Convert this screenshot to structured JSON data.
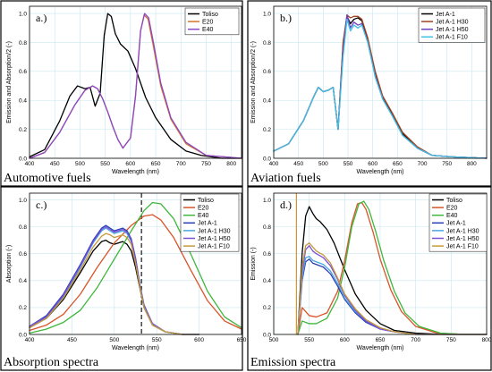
{
  "chart_data": [
    {
      "type": "line",
      "panel_label": "a.)",
      "caption": "Automotive fuels",
      "xlabel": "Wavelength (nm)",
      "ylabel": "Emission and Absorption/2 (-)",
      "xlim": [
        400,
        820
      ],
      "ylim": [
        0,
        1.05
      ],
      "xticks": [
        400,
        450,
        500,
        550,
        600,
        650,
        700,
        750,
        800
      ],
      "yticks": [
        0.0,
        0.2,
        0.4,
        0.6,
        0.8,
        1.0
      ],
      "grid": true,
      "legend_position": "top-right",
      "series": [
        {
          "name": "Toliso",
          "color": "#000000",
          "x": [
            400,
            430,
            460,
            480,
            495,
            510,
            520,
            530,
            540,
            548,
            555,
            562,
            570,
            580,
            595,
            610,
            630,
            650,
            680,
            710,
            740,
            780,
            820
          ],
          "y": [
            0.01,
            0.06,
            0.26,
            0.43,
            0.5,
            0.48,
            0.49,
            0.36,
            0.45,
            0.85,
            1.0,
            0.98,
            0.86,
            0.79,
            0.74,
            0.62,
            0.42,
            0.28,
            0.13,
            0.05,
            0.02,
            0.0,
            0.0
          ]
        },
        {
          "name": "E20",
          "color": "#d4752a",
          "x": [
            400,
            430,
            460,
            490,
            510,
            525,
            535,
            545,
            555,
            565,
            575,
            585,
            600,
            610,
            620,
            627,
            635,
            645,
            660,
            680,
            710,
            750,
            820
          ],
          "y": [
            0.0,
            0.04,
            0.18,
            0.37,
            0.47,
            0.5,
            0.48,
            0.41,
            0.32,
            0.22,
            0.13,
            0.07,
            0.14,
            0.43,
            0.88,
            0.99,
            0.96,
            0.78,
            0.5,
            0.27,
            0.1,
            0.02,
            0.0
          ]
        },
        {
          "name": "E40",
          "color": "#8a46c8",
          "x": [
            400,
            430,
            460,
            490,
            510,
            525,
            535,
            545,
            555,
            565,
            575,
            585,
            600,
            610,
            620,
            628,
            636,
            646,
            660,
            680,
            710,
            750,
            820
          ],
          "y": [
            0.0,
            0.04,
            0.18,
            0.37,
            0.47,
            0.5,
            0.48,
            0.41,
            0.32,
            0.22,
            0.13,
            0.07,
            0.14,
            0.43,
            0.88,
            1.0,
            0.97,
            0.79,
            0.52,
            0.28,
            0.11,
            0.02,
            0.0
          ]
        }
      ]
    },
    {
      "type": "line",
      "panel_label": "b.)",
      "caption": "Aviation fuels",
      "xlabel": "Wavelength (nm)",
      "ylabel": "Emission and Absorption/2 (-)",
      "xlim": [
        400,
        830
      ],
      "ylim": [
        0,
        1.05
      ],
      "xticks": [
        400,
        450,
        500,
        550,
        600,
        650,
        700,
        750,
        800
      ],
      "yticks": [
        0.0,
        0.2,
        0.4,
        0.6,
        0.8,
        1.0
      ],
      "grid": true,
      "legend_position": "top-right",
      "series": [
        {
          "name": "Jet  A-1",
          "color": "#000000",
          "x": [
            400,
            430,
            460,
            480,
            490,
            500,
            510,
            520,
            530,
            540,
            548,
            555,
            562,
            570,
            578,
            590,
            605,
            620,
            640,
            660,
            690,
            720,
            760,
            830
          ],
          "y": [
            0.05,
            0.1,
            0.26,
            0.42,
            0.49,
            0.46,
            0.47,
            0.49,
            0.2,
            0.78,
            0.98,
            0.93,
            0.96,
            0.97,
            0.95,
            0.82,
            0.58,
            0.42,
            0.3,
            0.17,
            0.07,
            0.02,
            0.01,
            0.0
          ]
        },
        {
          "name": "Jet A-1 H30",
          "color": "#a3441e",
          "x": [
            400,
            430,
            460,
            480,
            490,
            500,
            510,
            520,
            530,
            540,
            548,
            555,
            562,
            570,
            578,
            590,
            605,
            620,
            640,
            660,
            690,
            720,
            760,
            830
          ],
          "y": [
            0.05,
            0.1,
            0.26,
            0.42,
            0.49,
            0.46,
            0.47,
            0.49,
            0.2,
            0.8,
            0.99,
            0.97,
            0.98,
            0.98,
            0.96,
            0.83,
            0.6,
            0.43,
            0.31,
            0.18,
            0.08,
            0.02,
            0.01,
            0.0
          ]
        },
        {
          "name": "Jet A-1 H50",
          "color": "#6a3fc0",
          "x": [
            400,
            430,
            460,
            480,
            490,
            500,
            510,
            520,
            530,
            540,
            548,
            555,
            562,
            570,
            578,
            590,
            605,
            620,
            640,
            660,
            690,
            720,
            760,
            830
          ],
          "y": [
            0.05,
            0.1,
            0.26,
            0.42,
            0.49,
            0.46,
            0.47,
            0.49,
            0.2,
            0.74,
            0.99,
            0.9,
            0.94,
            0.92,
            0.93,
            0.8,
            0.57,
            0.41,
            0.29,
            0.16,
            0.07,
            0.02,
            0.01,
            0.0
          ]
        },
        {
          "name": "Jet A-1 F10",
          "color": "#3fc1e4",
          "x": [
            400,
            430,
            460,
            480,
            490,
            500,
            510,
            520,
            530,
            540,
            548,
            555,
            562,
            570,
            578,
            590,
            605,
            620,
            640,
            660,
            690,
            720,
            760,
            830
          ],
          "y": [
            0.05,
            0.1,
            0.26,
            0.42,
            0.49,
            0.46,
            0.47,
            0.49,
            0.2,
            0.7,
            0.96,
            0.88,
            0.92,
            0.9,
            0.92,
            0.8,
            0.56,
            0.41,
            0.29,
            0.16,
            0.07,
            0.02,
            0.01,
            0.0
          ]
        }
      ]
    },
    {
      "type": "line",
      "panel_label": "c.)",
      "caption": "Absorption spectra",
      "xlabel": "Wavelength (nm)",
      "ylabel": "Absorption (-)",
      "xlim": [
        400,
        650
      ],
      "ylim": [
        0,
        1.05
      ],
      "xticks": [
        400,
        450,
        500,
        550,
        600,
        650
      ],
      "yticks": [
        0.0,
        0.2,
        0.4,
        0.6,
        0.8,
        1.0
      ],
      "grid": true,
      "legend_position": "top-right",
      "marker_wavelength": 532,
      "series": [
        {
          "name": "Toliso",
          "color": "#000000",
          "x": [
            400,
            420,
            440,
            460,
            475,
            485,
            490,
            495,
            500,
            505,
            510,
            515,
            520,
            525,
            530,
            535,
            545,
            560,
            580,
            600
          ],
          "y": [
            0.05,
            0.12,
            0.26,
            0.46,
            0.62,
            0.69,
            0.7,
            0.68,
            0.67,
            0.68,
            0.69,
            0.67,
            0.62,
            0.5,
            0.35,
            0.2,
            0.07,
            0.02,
            0.0,
            0.0
          ]
        },
        {
          "name": "E20",
          "color": "#d9542a",
          "x": [
            400,
            420,
            440,
            460,
            480,
            500,
            520,
            535,
            545,
            555,
            570,
            590,
            610,
            630,
            650
          ],
          "y": [
            0.03,
            0.07,
            0.15,
            0.3,
            0.5,
            0.68,
            0.81,
            0.88,
            0.89,
            0.85,
            0.72,
            0.48,
            0.25,
            0.1,
            0.04
          ]
        },
        {
          "name": "E40",
          "color": "#3fb63c",
          "x": [
            400,
            420,
            440,
            460,
            480,
            500,
            520,
            535,
            545,
            555,
            570,
            590,
            610,
            630,
            650
          ],
          "y": [
            0.01,
            0.04,
            0.09,
            0.18,
            0.35,
            0.56,
            0.77,
            0.92,
            0.98,
            0.97,
            0.86,
            0.6,
            0.32,
            0.13,
            0.05
          ]
        },
        {
          "name": "Jet  A-1",
          "color": "#2b3db4",
          "x": [
            400,
            420,
            440,
            460,
            475,
            485,
            490,
            495,
            500,
            505,
            510,
            515,
            520,
            525,
            530,
            535,
            545,
            560,
            580,
            600
          ],
          "y": [
            0.06,
            0.14,
            0.3,
            0.52,
            0.7,
            0.79,
            0.81,
            0.79,
            0.77,
            0.78,
            0.79,
            0.77,
            0.71,
            0.57,
            0.38,
            0.22,
            0.08,
            0.02,
            0.0,
            0.0
          ]
        },
        {
          "name": "Jet A-1 H30",
          "color": "#4aa7e0",
          "x": [
            400,
            420,
            440,
            460,
            475,
            485,
            490,
            495,
            500,
            505,
            510,
            515,
            520,
            525,
            530,
            535,
            545,
            560,
            580,
            600
          ],
          "y": [
            0.06,
            0.13,
            0.28,
            0.5,
            0.68,
            0.77,
            0.79,
            0.77,
            0.75,
            0.76,
            0.77,
            0.75,
            0.69,
            0.55,
            0.37,
            0.21,
            0.08,
            0.02,
            0.0,
            0.0
          ]
        },
        {
          "name": "Jet A-1 H50",
          "color": "#7a4fd6",
          "x": [
            400,
            420,
            440,
            460,
            475,
            485,
            490,
            495,
            500,
            505,
            510,
            515,
            520,
            525,
            530,
            535,
            545,
            560,
            580,
            600
          ],
          "y": [
            0.06,
            0.13,
            0.29,
            0.51,
            0.69,
            0.78,
            0.8,
            0.78,
            0.76,
            0.77,
            0.78,
            0.76,
            0.7,
            0.56,
            0.37,
            0.21,
            0.08,
            0.02,
            0.0,
            0.0
          ]
        },
        {
          "name": "Jet A-1 F10",
          "color": "#c59a3a",
          "x": [
            400,
            420,
            440,
            460,
            475,
            485,
            490,
            495,
            500,
            505,
            510,
            515,
            520,
            525,
            530,
            535,
            545,
            560,
            580,
            600
          ],
          "y": [
            0.05,
            0.12,
            0.27,
            0.48,
            0.65,
            0.73,
            0.75,
            0.74,
            0.72,
            0.73,
            0.74,
            0.72,
            0.67,
            0.53,
            0.36,
            0.2,
            0.07,
            0.02,
            0.0,
            0.0
          ]
        }
      ]
    },
    {
      "type": "line",
      "panel_label": "d.)",
      "caption": "Emission spectra",
      "xlabel": "Wavelength (nm)",
      "ylabel": "Emission (-)",
      "xlim": [
        500,
        800
      ],
      "ylim": [
        0,
        1.05
      ],
      "xticks": [
        500,
        550,
        600,
        650,
        700,
        750,
        800
      ],
      "yticks": [
        0.0,
        0.2,
        0.4,
        0.6,
        0.8,
        1.0
      ],
      "grid": true,
      "legend_position": "top-right",
      "laser_line_wavelength": 532,
      "series": [
        {
          "name": "Toliso",
          "color": "#000000",
          "x": [
            534,
            540,
            545,
            550,
            555,
            560,
            565,
            575,
            585,
            600,
            615,
            630,
            650,
            670,
            700,
            740,
            800
          ],
          "y": [
            0.0,
            0.6,
            0.88,
            0.95,
            0.9,
            0.86,
            0.84,
            0.78,
            0.68,
            0.48,
            0.3,
            0.18,
            0.08,
            0.03,
            0.01,
            0.0,
            0.0
          ]
        },
        {
          "name": "E20",
          "color": "#d9542a",
          "x": [
            534,
            540,
            550,
            560,
            575,
            590,
            600,
            610,
            618,
            624,
            630,
            640,
            650,
            665,
            680,
            700,
            730,
            770,
            800
          ],
          "y": [
            0.0,
            0.2,
            0.14,
            0.13,
            0.16,
            0.32,
            0.55,
            0.83,
            0.97,
            0.98,
            0.93,
            0.76,
            0.56,
            0.33,
            0.17,
            0.06,
            0.01,
            0.0,
            0.0
          ]
        },
        {
          "name": "E40",
          "color": "#3fb63c",
          "x": [
            534,
            540,
            550,
            560,
            575,
            590,
            600,
            610,
            620,
            627,
            634,
            644,
            655,
            670,
            685,
            705,
            735,
            770,
            800
          ],
          "y": [
            0.0,
            0.1,
            0.08,
            0.08,
            0.12,
            0.27,
            0.5,
            0.8,
            0.97,
            0.99,
            0.93,
            0.76,
            0.55,
            0.32,
            0.16,
            0.06,
            0.01,
            0.0,
            0.0
          ]
        },
        {
          "name": "Jet  A-1",
          "color": "#2b3db4",
          "x": [
            534,
            540,
            545,
            550,
            555,
            560,
            570,
            580,
            590,
            600,
            615,
            630,
            650,
            670,
            700,
            740,
            800
          ],
          "y": [
            0.0,
            0.4,
            0.54,
            0.56,
            0.53,
            0.52,
            0.5,
            0.45,
            0.36,
            0.26,
            0.16,
            0.09,
            0.04,
            0.02,
            0.0,
            0.0,
            0.0
          ]
        },
        {
          "name": "Jet A-1 H30",
          "color": "#4aa7e0",
          "x": [
            534,
            540,
            545,
            550,
            555,
            560,
            570,
            580,
            590,
            600,
            615,
            630,
            650,
            670,
            700,
            740,
            800
          ],
          "y": [
            0.0,
            0.42,
            0.57,
            0.58,
            0.55,
            0.54,
            0.52,
            0.47,
            0.38,
            0.27,
            0.17,
            0.1,
            0.04,
            0.02,
            0.0,
            0.0,
            0.0
          ]
        },
        {
          "name": "Jet A-1 H50",
          "color": "#7a4fd6",
          "x": [
            534,
            540,
            545,
            550,
            555,
            560,
            570,
            580,
            590,
            600,
            615,
            630,
            650,
            670,
            700,
            740,
            800
          ],
          "y": [
            0.0,
            0.46,
            0.63,
            0.66,
            0.62,
            0.6,
            0.57,
            0.51,
            0.41,
            0.29,
            0.18,
            0.1,
            0.04,
            0.02,
            0.0,
            0.0,
            0.0
          ]
        },
        {
          "name": "Jet A-1 F10",
          "color": "#c59a3a",
          "x": [
            534,
            540,
            545,
            550,
            555,
            560,
            570,
            580,
            590,
            600,
            615,
            630,
            650,
            670,
            700,
            740,
            800
          ],
          "y": [
            0.0,
            0.5,
            0.66,
            0.68,
            0.65,
            0.62,
            0.59,
            0.53,
            0.42,
            0.3,
            0.19,
            0.11,
            0.05,
            0.02,
            0.0,
            0.0,
            0.0
          ]
        }
      ]
    }
  ]
}
